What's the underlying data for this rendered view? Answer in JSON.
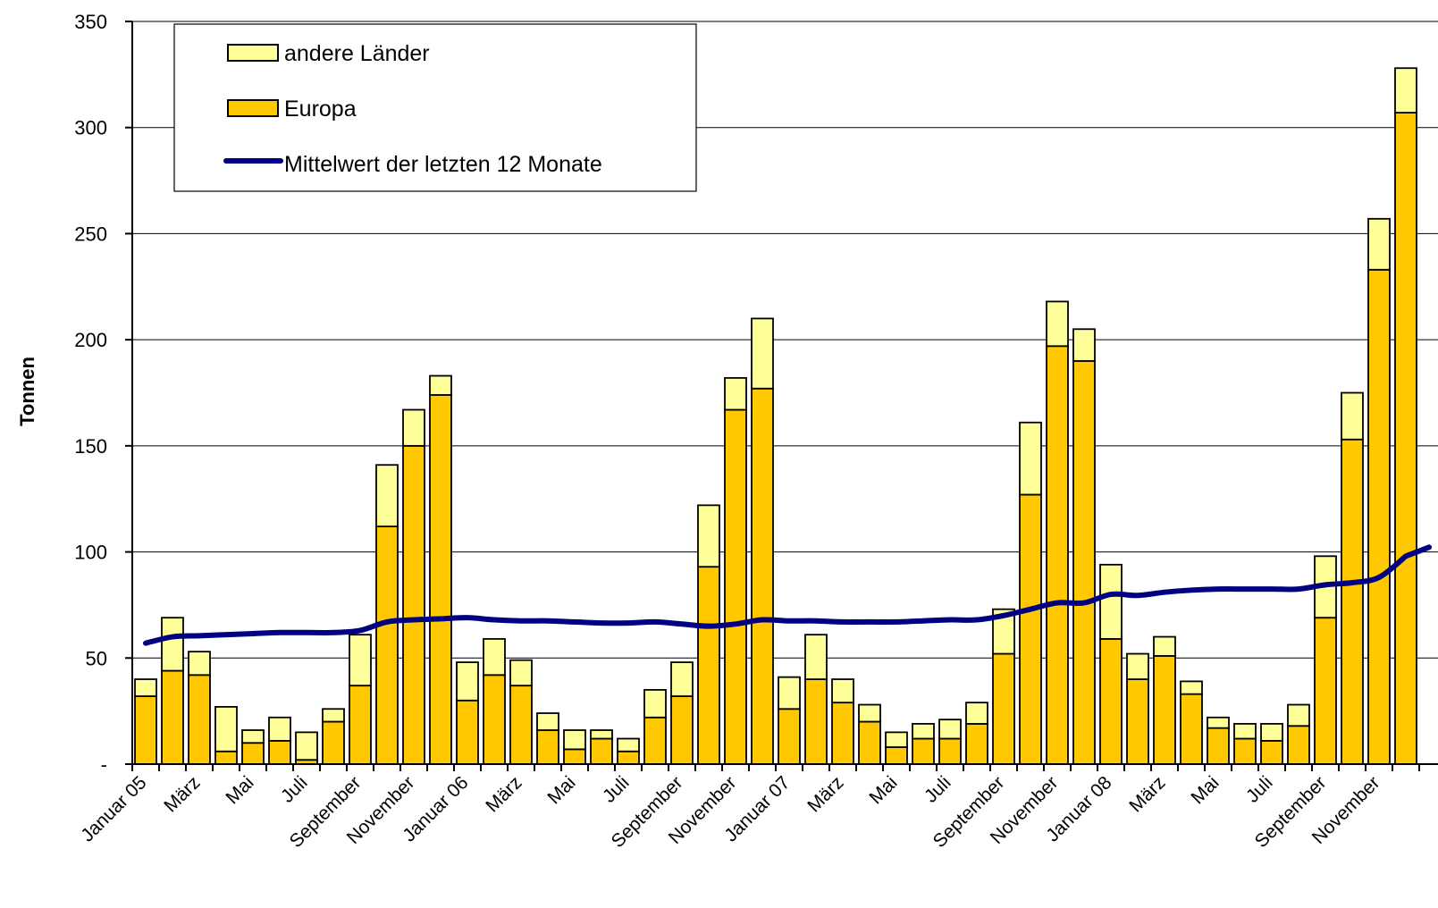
{
  "colors": {
    "europa": "#FFC800",
    "andere": "#FFFF99",
    "line": "#000080",
    "grid": "#000000",
    "bar_stroke": "#000000"
  },
  "chart_data": {
    "type": "bar",
    "stacked": true,
    "ylabel": "Tonnen",
    "ylim": [
      0,
      350
    ],
    "yticks": [
      {
        "value": 0,
        "label": "-"
      },
      {
        "value": 50,
        "label": "50"
      },
      {
        "value": 100,
        "label": "100"
      },
      {
        "value": 150,
        "label": "150"
      },
      {
        "value": 200,
        "label": "200"
      },
      {
        "value": 250,
        "label": "250"
      },
      {
        "value": 300,
        "label": "300"
      },
      {
        "value": 350,
        "label": "350"
      }
    ],
    "grid": true,
    "legend_position": "top-left",
    "xtick_labels": [
      {
        "index": 0,
        "label": "Januar 05"
      },
      {
        "index": 2,
        "label": "März"
      },
      {
        "index": 4,
        "label": "Mai"
      },
      {
        "index": 6,
        "label": "Juli"
      },
      {
        "index": 8,
        "label": "September"
      },
      {
        "index": 10,
        "label": "November"
      },
      {
        "index": 12,
        "label": "Januar 06"
      },
      {
        "index": 14,
        "label": "März"
      },
      {
        "index": 16,
        "label": "Mai"
      },
      {
        "index": 18,
        "label": "Juli"
      },
      {
        "index": 20,
        "label": "September"
      },
      {
        "index": 22,
        "label": "November"
      },
      {
        "index": 24,
        "label": "Januar 07"
      },
      {
        "index": 26,
        "label": "März"
      },
      {
        "index": 28,
        "label": "Mai"
      },
      {
        "index": 30,
        "label": "Juli"
      },
      {
        "index": 32,
        "label": "September"
      },
      {
        "index": 34,
        "label": "November"
      },
      {
        "index": 36,
        "label": "Januar 08"
      },
      {
        "index": 38,
        "label": "März"
      },
      {
        "index": 40,
        "label": "Mai"
      },
      {
        "index": 42,
        "label": "Juli"
      },
      {
        "index": 44,
        "label": "September"
      },
      {
        "index": 46,
        "label": "November"
      }
    ],
    "series": [
      {
        "name": "Europa",
        "kind": "bar",
        "values": [
          32,
          44,
          42,
          6,
          10,
          11,
          2,
          20,
          37,
          112,
          150,
          174,
          30,
          42,
          37,
          16,
          7,
          12,
          6,
          22,
          32,
          93,
          167,
          177,
          26,
          40,
          29,
          20,
          8,
          12,
          12,
          19,
          52,
          127,
          197,
          190,
          59,
          40,
          51,
          33,
          17,
          12,
          11,
          18,
          69,
          153,
          233,
          307
        ]
      },
      {
        "name": "andere Länder",
        "kind": "bar",
        "values": [
          8,
          25,
          11,
          21,
          6,
          11,
          13,
          6,
          24,
          29,
          17,
          9,
          18,
          17,
          12,
          8,
          9,
          4,
          6,
          13,
          16,
          29,
          15,
          33,
          15,
          21,
          11,
          8,
          7,
          7,
          9,
          10,
          21,
          34,
          21,
          15,
          35,
          12,
          9,
          6,
          5,
          7,
          8,
          10,
          29,
          22,
          24,
          21
        ]
      },
      {
        "name": "Mittelwert der letzten 12 Monate",
        "kind": "line",
        "values": [
          57,
          60,
          60.5,
          61,
          61.5,
          62,
          62,
          62,
          63,
          67,
          68,
          68.5,
          69,
          68,
          67.5,
          67.5,
          67,
          66.5,
          66.5,
          67,
          66,
          65,
          66,
          68,
          67.5,
          67.5,
          67,
          67,
          67,
          67.5,
          68,
          68,
          70,
          73,
          76,
          76,
          80,
          79.5,
          81,
          82,
          82.5,
          82.5,
          82.5,
          82.5,
          84.5,
          85.5,
          88,
          98
        ]
      }
    ]
  },
  "legend": {
    "items": [
      {
        "label": "andere Länder"
      },
      {
        "label": "Europa"
      },
      {
        "label": "Mittelwert der letzten 12 Monate"
      }
    ]
  }
}
